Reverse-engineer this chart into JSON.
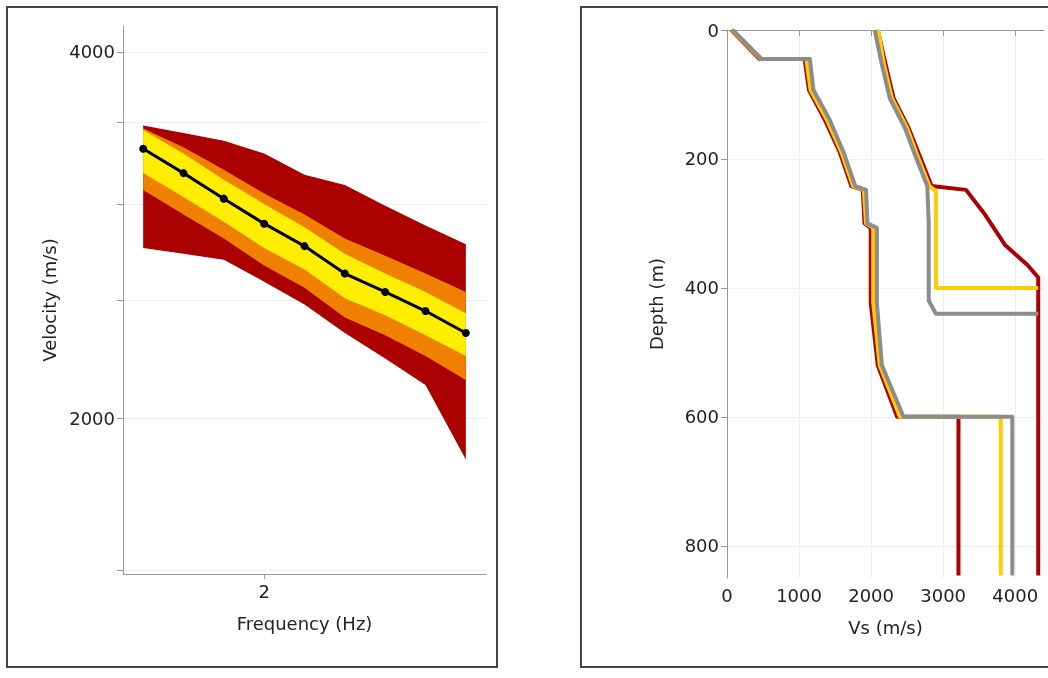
{
  "chart_data": [
    {
      "type": "line",
      "xlabel": "Frequency (Hz)",
      "ylabel": "Velocity (m/s)",
      "log": "y",
      "grid": "y",
      "categories": [
        null,
        null,
        null,
        "2",
        null,
        null,
        null,
        null,
        null
      ],
      "ylim": [
        1490,
        4200
      ],
      "yticks": [
        {
          "value": 1500,
          "label": null
        },
        2000,
        {
          "value": 2500,
          "label": null
        },
        {
          "value": 3000,
          "label": null
        },
        {
          "value": 3500,
          "label": null
        },
        4000
      ],
      "series": [
        {
          "color": "#aa0000",
          "values": [
            null,
            null,
            null,
            null,
            null,
            null,
            null,
            null,
            null
          ],
          "upper": [
            3480,
            3430,
            3380,
            3300,
            3170,
            3110,
            2990,
            2880,
            2780
          ],
          "lower": [
            2760,
            2730,
            2700,
            2590,
            2480,
            2350,
            2240,
            2130,
            1850
          ]
        },
        {
          "color": "#f08000",
          "values": [
            null,
            null,
            null,
            null,
            null,
            null,
            null,
            null,
            null
          ],
          "upper": [
            3460,
            3340,
            3200,
            3060,
            2940,
            2810,
            2720,
            2630,
            2540
          ],
          "lower": [
            3080,
            2940,
            2810,
            2670,
            2560,
            2420,
            2340,
            2250,
            2150
          ]
        },
        {
          "color": "#ffee00",
          "values": [
            null,
            null,
            null,
            null,
            null,
            null,
            null,
            null,
            null
          ],
          "upper": [
            3450,
            3300,
            3140,
            3000,
            2870,
            2730,
            2630,
            2540,
            2440
          ],
          "lower": [
            3180,
            3040,
            2900,
            2760,
            2650,
            2510,
            2430,
            2340,
            2250
          ]
        },
        {
          "color": "#000000",
          "marker": "circle",
          "values": [
            3330,
            3180,
            3030,
            2890,
            2770,
            2630,
            2540,
            2450,
            2350
          ]
        }
      ]
    },
    {
      "type": "line",
      "xlabel": "Vs (m/s)",
      "ylabel": "Depth (m)",
      "grid": true,
      "xlim": [
        0,
        4400
      ],
      "xticks": [
        0,
        1000,
        2000,
        3000,
        4000
      ],
      "ylim": [
        850,
        0
      ],
      "yticks": [
        0,
        200,
        400,
        600,
        800
      ],
      "series": [
        {
          "color": "#aa0000",
          "x": [
            61,
            453,
            1077,
            1138,
            1352,
            1567,
            1726,
            1885,
            1909,
            1995,
            1995,
            2093,
            2362,
            3213,
            3213
          ],
          "values": [
            0,
            45,
            45,
            93,
            138,
            190,
            242,
            248,
            300,
            307,
            423,
            520,
            600,
            600,
            846
          ]
        },
        {
          "color": "#aa0000",
          "x": [
            2093,
            2203,
            2313,
            2521,
            2680,
            2840,
            3317,
            3586,
            3856,
            4174,
            4320,
            4320
          ],
          "values": [
            0,
            54,
            106,
            152,
            197,
            242,
            248,
            287,
            333,
            365,
            384,
            846
          ]
        },
        {
          "color": "#ffcc00",
          "x": [
            70,
            470,
            1100,
            1160,
            1380,
            1590,
            1750,
            1900,
            1930,
            2030,
            2030,
            2120,
            2400,
            3800,
            3800
          ],
          "values": [
            0,
            45,
            45,
            93,
            138,
            190,
            242,
            248,
            300,
            307,
            423,
            520,
            600,
            600,
            846
          ]
        },
        {
          "color": "#ffcc00",
          "x": [
            2100,
            2180,
            2290,
            2500,
            2650,
            2810,
            2900,
            2900,
            4320
          ],
          "values": [
            0,
            54,
            106,
            152,
            197,
            242,
            250,
            400,
            400
          ]
        },
        {
          "color": "#8c8c8c",
          "x": [
            80,
            480,
            1150,
            1200,
            1420,
            1620,
            1780,
            1930,
            1950,
            2080,
            2080,
            2150,
            2450,
            3960,
            3960
          ],
          "values": [
            0,
            45,
            45,
            93,
            138,
            190,
            242,
            248,
            300,
            307,
            423,
            520,
            600,
            600,
            846
          ]
        },
        {
          "color": "#8c8c8c",
          "x": [
            2050,
            2150,
            2260,
            2470,
            2620,
            2780,
            2800,
            2800,
            2900,
            4320
          ],
          "values": [
            0,
            54,
            106,
            152,
            197,
            242,
            300,
            420,
            440,
            440
          ]
        }
      ]
    }
  ]
}
